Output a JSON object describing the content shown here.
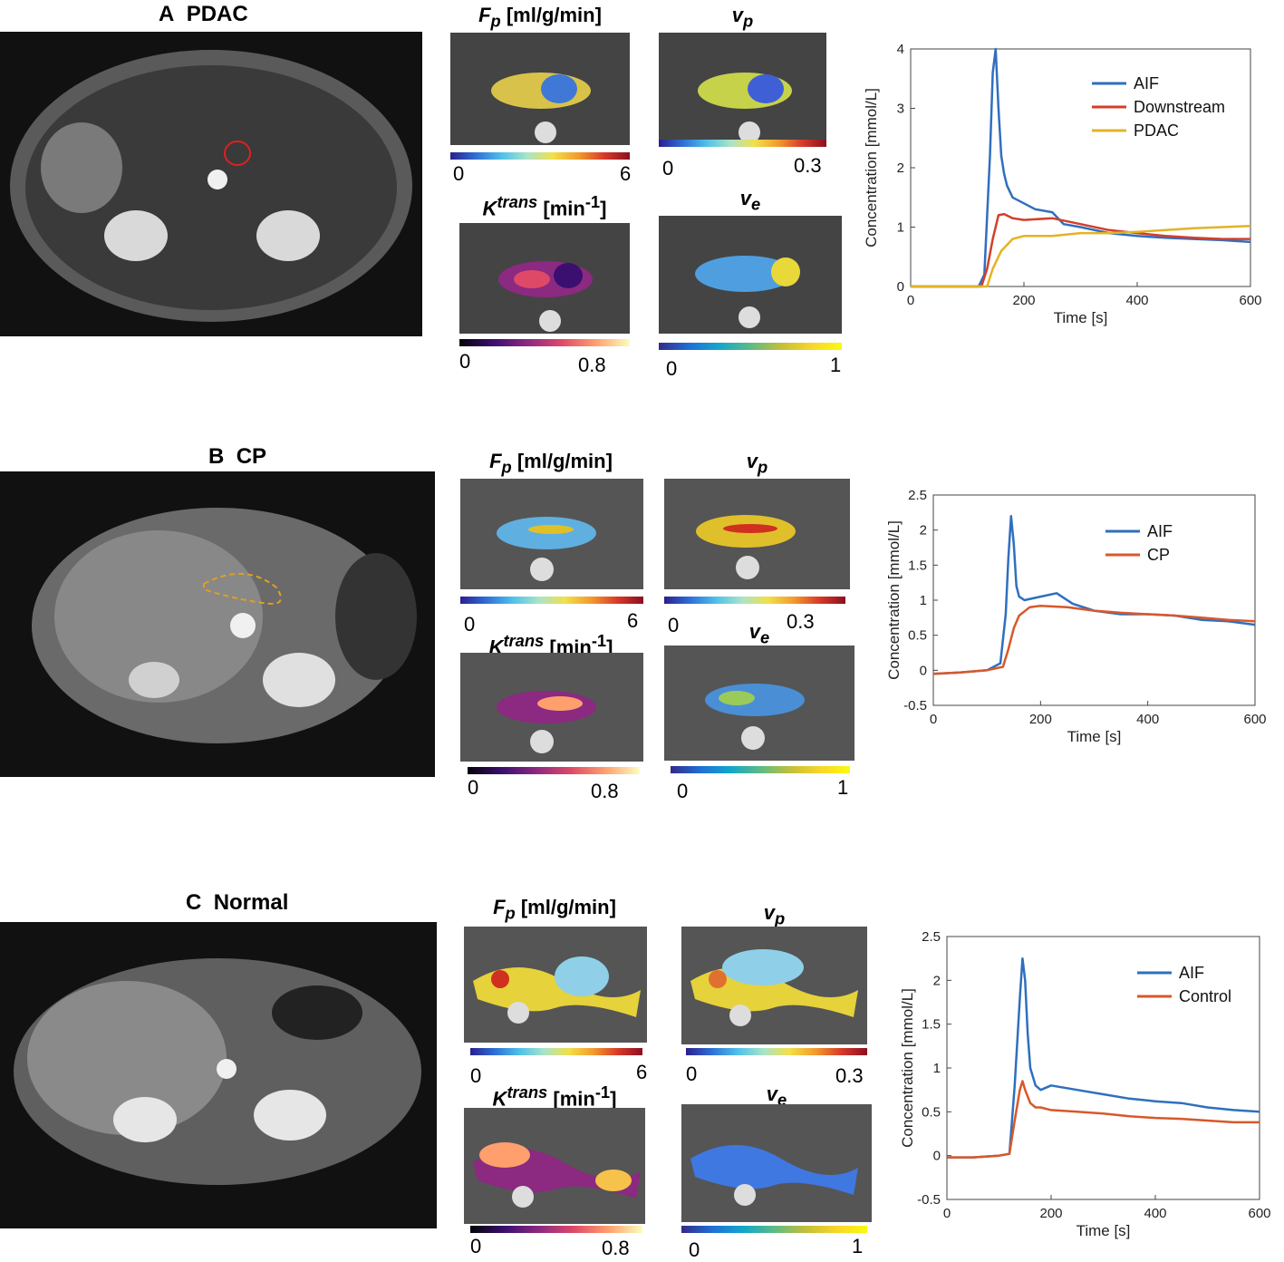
{
  "panels": [
    {
      "letter": "A",
      "name": "PDAC",
      "maps": {
        "fp": {
          "symbol": "F",
          "sub": "p",
          "unit": " [ml/g/min]",
          "min": "0",
          "max": "6"
        },
        "vp": {
          "symbol": "v",
          "sub": "p",
          "min": "0",
          "max": "0.3"
        },
        "ktrans": {
          "symbol": "K",
          "sup": "trans",
          "unit": " [min",
          "unit_sup": "-1",
          "unit_end": "]",
          "min": "0",
          "max": "0.8"
        },
        "ve": {
          "symbol": "v",
          "sub": "e",
          "min": "0",
          "max": "1"
        }
      }
    },
    {
      "letter": "B",
      "name": "CP",
      "maps": {
        "fp": {
          "symbol": "F",
          "sub": "p",
          "unit": " [ml/g/min]",
          "min": "0",
          "max": "6"
        },
        "vp": {
          "symbol": "v",
          "sub": "p",
          "min": "0",
          "max": "0.3"
        },
        "ktrans": {
          "symbol": "K",
          "sup": "trans",
          "unit": " [min",
          "unit_sup": "-1",
          "unit_end": "]",
          "min": "0",
          "max": "0.8"
        },
        "ve": {
          "symbol": "v",
          "sub": "e",
          "min": "0",
          "max": "1"
        }
      }
    },
    {
      "letter": "C",
      "name": "Normal",
      "maps": {
        "fp": {
          "symbol": "F",
          "sub": "p",
          "unit": " [ml/g/min]",
          "min": "0",
          "max": "6"
        },
        "vp": {
          "symbol": "v",
          "sub": "p",
          "min": "0",
          "max": "0.3"
        },
        "ktrans": {
          "symbol": "K",
          "sup": "trans",
          "unit": " [min",
          "unit_sup": "-1",
          "unit_end": "]",
          "min": "0",
          "max": "0.8"
        },
        "ve": {
          "symbol": "v",
          "sub": "e",
          "min": "0",
          "max": "1"
        }
      }
    }
  ],
  "chart_data": [
    {
      "type": "line",
      "xlabel": "Time [s]",
      "ylabel": "Concentration [mmol/L]",
      "xlim": [
        0,
        600
      ],
      "ylim": [
        0,
        4
      ],
      "xticks": [
        "0",
        "200",
        "400",
        "600"
      ],
      "yticks": [
        "0",
        "1",
        "2",
        "3",
        "4"
      ],
      "legend_position": "top-right",
      "series": [
        {
          "name": "AIF",
          "color": "#2f6fbf",
          "x": [
            0,
            120,
            130,
            140,
            145,
            150,
            155,
            160,
            165,
            170,
            180,
            200,
            220,
            250,
            270,
            300,
            350,
            400,
            450,
            500,
            550,
            600
          ],
          "y": [
            0,
            0,
            0.2,
            2.2,
            3.6,
            4.0,
            3.0,
            2.2,
            1.9,
            1.7,
            1.5,
            1.4,
            1.3,
            1.25,
            1.05,
            1.0,
            0.9,
            0.85,
            0.82,
            0.8,
            0.78,
            0.75
          ]
        },
        {
          "name": "Downstream",
          "color": "#d1402a",
          "x": [
            0,
            125,
            135,
            145,
            155,
            165,
            180,
            200,
            250,
            300,
            350,
            400,
            450,
            500,
            550,
            600
          ],
          "y": [
            0,
            0,
            0.3,
            0.8,
            1.2,
            1.22,
            1.15,
            1.12,
            1.15,
            1.05,
            0.95,
            0.9,
            0.85,
            0.82,
            0.8,
            0.8
          ]
        },
        {
          "name": "PDAC",
          "color": "#e3b323",
          "x": [
            0,
            135,
            145,
            160,
            180,
            200,
            250,
            300,
            350,
            400,
            450,
            500,
            550,
            600
          ],
          "y": [
            0,
            0,
            0.3,
            0.6,
            0.8,
            0.85,
            0.85,
            0.9,
            0.9,
            0.92,
            0.95,
            0.98,
            1.0,
            1.02
          ]
        }
      ]
    },
    {
      "type": "line",
      "xlabel": "Time [s]",
      "ylabel": "Concentration [mmol/L]",
      "xlim": [
        0,
        600
      ],
      "ylim": [
        -0.5,
        2.5
      ],
      "xticks": [
        "0",
        "200",
        "400",
        "600"
      ],
      "yticks": [
        "-0.5",
        "0",
        "0.5",
        "1",
        "1.5",
        "2",
        "2.5"
      ],
      "legend_position": "top-right",
      "series": [
        {
          "name": "AIF",
          "color": "#2f6fbf",
          "x": [
            0,
            50,
            100,
            125,
            135,
            140,
            145,
            150,
            155,
            160,
            170,
            200,
            230,
            260,
            300,
            350,
            400,
            450,
            500,
            550,
            600
          ],
          "y": [
            -0.05,
            -0.03,
            0,
            0.1,
            0.8,
            1.6,
            2.2,
            1.8,
            1.2,
            1.05,
            1.0,
            1.05,
            1.1,
            0.95,
            0.85,
            0.8,
            0.8,
            0.78,
            0.72,
            0.7,
            0.65
          ]
        },
        {
          "name": "CP",
          "color": "#d8582a",
          "x": [
            0,
            50,
            100,
            130,
            140,
            150,
            160,
            180,
            200,
            250,
            300,
            350,
            400,
            450,
            500,
            550,
            600
          ],
          "y": [
            -0.05,
            -0.03,
            0,
            0.05,
            0.3,
            0.6,
            0.78,
            0.9,
            0.92,
            0.9,
            0.85,
            0.82,
            0.8,
            0.78,
            0.75,
            0.72,
            0.7
          ]
        }
      ]
    },
    {
      "type": "line",
      "xlabel": "Time [s]",
      "ylabel": "Concentration [mmol/L]",
      "xlim": [
        0,
        600
      ],
      "ylim": [
        -0.5,
        2.5
      ],
      "xticks": [
        "0",
        "200",
        "400",
        "600"
      ],
      "yticks": [
        "-0.5",
        "0",
        "0.5",
        "1",
        "1.5",
        "2",
        "2.5"
      ],
      "legend_position": "top-right",
      "series": [
        {
          "name": "AIF",
          "color": "#2f6fbf",
          "x": [
            0,
            50,
            100,
            120,
            130,
            140,
            145,
            150,
            155,
            160,
            170,
            180,
            200,
            250,
            300,
            350,
            400,
            450,
            500,
            550,
            600
          ],
          "y": [
            -0.02,
            -0.02,
            0,
            0.02,
            0.8,
            1.8,
            2.25,
            2.0,
            1.4,
            1.0,
            0.8,
            0.75,
            0.8,
            0.75,
            0.7,
            0.65,
            0.62,
            0.6,
            0.55,
            0.52,
            0.5
          ]
        },
        {
          "name": "Control",
          "color": "#d8582a",
          "x": [
            0,
            50,
            100,
            120,
            130,
            140,
            145,
            150,
            160,
            170,
            180,
            200,
            250,
            300,
            350,
            400,
            450,
            500,
            550,
            600
          ],
          "y": [
            -0.02,
            -0.02,
            0,
            0.02,
            0.4,
            0.75,
            0.85,
            0.75,
            0.6,
            0.55,
            0.55,
            0.52,
            0.5,
            0.48,
            0.45,
            0.43,
            0.42,
            0.4,
            0.38,
            0.38
          ]
        }
      ]
    }
  ]
}
